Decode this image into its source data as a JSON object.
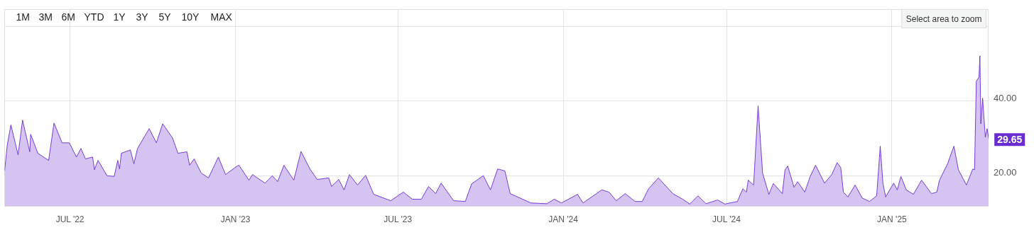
{
  "chart_data": {
    "type": "area",
    "x": [
      "2022-04-19",
      "2022-04-22",
      "2022-04-26",
      "2022-05-04",
      "2022-05-09",
      "2022-05-17",
      "2022-05-18",
      "2022-05-26",
      "2022-06-07",
      "2022-06-13",
      "2022-06-22",
      "2022-06-30",
      "2022-07-08",
      "2022-07-13",
      "2022-07-18",
      "2022-07-26",
      "2022-07-28",
      "2022-08-01",
      "2022-08-11",
      "2022-08-19",
      "2022-08-23",
      "2022-08-25",
      "2022-08-27",
      "2022-09-06",
      "2022-09-10",
      "2022-09-14",
      "2022-09-27",
      "2022-10-05",
      "2022-10-12",
      "2022-10-23",
      "2022-10-29",
      "2022-11-08",
      "2022-11-11",
      "2022-11-16",
      "2022-11-24",
      "2022-12-02",
      "2022-12-13",
      "2022-12-21",
      "2023-01-03",
      "2023-01-05",
      "2023-01-16",
      "2023-01-20",
      "2023-02-03",
      "2023-02-11",
      "2023-02-17",
      "2023-02-24",
      "2023-03-07",
      "2023-03-15",
      "2023-03-25",
      "2023-04-02",
      "2023-04-15",
      "2023-04-18",
      "2023-04-26",
      "2023-05-02",
      "2023-05-08",
      "2023-05-17",
      "2023-05-26",
      "2023-06-04",
      "2023-06-23",
      "2023-07-07",
      "2023-07-17",
      "2023-07-27",
      "2023-08-04",
      "2023-08-12",
      "2023-08-18",
      "2023-09-01",
      "2023-09-14",
      "2023-09-21",
      "2023-10-04",
      "2023-10-12",
      "2023-10-20",
      "2023-10-28",
      "2023-11-03",
      "2023-11-26",
      "2023-12-14",
      "2023-12-22",
      "2023-12-30",
      "2024-01-17",
      "2024-01-23",
      "2024-02-13",
      "2024-02-21",
      "2024-02-29",
      "2024-03-10",
      "2024-03-21",
      "2024-03-29",
      "2024-04-05",
      "2024-04-16",
      "2024-05-02",
      "2024-05-13",
      "2024-05-21",
      "2024-05-30",
      "2024-06-08",
      "2024-06-21",
      "2024-06-29",
      "2024-07-13",
      "2024-07-19",
      "2024-07-23",
      "2024-07-25",
      "2024-07-31",
      "2024-08-05",
      "2024-08-08",
      "2024-08-10",
      "2024-08-17",
      "2024-08-22",
      "2024-09-01",
      "2024-09-04",
      "2024-09-07",
      "2024-09-14",
      "2024-09-18",
      "2024-09-26",
      "2024-10-02",
      "2024-10-08",
      "2024-10-18",
      "2024-10-26",
      "2024-11-01",
      "2024-11-05",
      "2024-11-08",
      "2024-11-13",
      "2024-11-21",
      "2024-11-29",
      "2024-12-07",
      "2024-12-15",
      "2024-12-19",
      "2024-12-22",
      "2024-12-25",
      "2025-01-03",
      "2025-01-07",
      "2025-01-11",
      "2025-01-17",
      "2025-01-25",
      "2025-02-03",
      "2025-02-14",
      "2025-02-20",
      "2025-02-23",
      "2025-03-04",
      "2025-03-11",
      "2025-03-16",
      "2025-03-25",
      "2025-04-01",
      "2025-04-03",
      "2025-04-05",
      "2025-04-08",
      "2025-04-09",
      "2025-04-10",
      "2025-04-12",
      "2025-04-15",
      "2025-04-17",
      "2025-04-19"
    ],
    "series": [
      {
        "color": "#6a2bd0",
        "values": [
          21.3,
          28.3,
          33.6,
          25.6,
          34.9,
          26.4,
          31.1,
          26.0,
          24.1,
          34.1,
          28.8,
          28.8,
          25.0,
          27.3,
          24.5,
          25.0,
          21.6,
          24.1,
          20.0,
          19.8,
          24.1,
          21.8,
          26.0,
          26.9,
          23.2,
          27.3,
          32.6,
          28.8,
          33.9,
          30.1,
          26.0,
          26.4,
          22.8,
          24.5,
          20.7,
          19.4,
          25.0,
          20.3,
          22.6,
          22.8,
          18.8,
          20.3,
          18.0,
          20.0,
          18.4,
          22.8,
          18.8,
          26.5,
          21.8,
          19.0,
          19.4,
          17.1,
          19.0,
          16.2,
          20.3,
          17.5,
          20.1,
          15.0,
          13.3,
          15.6,
          13.7,
          13.7,
          17.1,
          15.2,
          18.0,
          13.3,
          13.1,
          17.8,
          20.0,
          16.2,
          21.8,
          21.3,
          15.2,
          12.7,
          12.5,
          13.7,
          12.7,
          15.0,
          12.7,
          16.2,
          15.6,
          13.3,
          15.2,
          13.1,
          13.1,
          16.5,
          19.4,
          15.2,
          13.7,
          12.4,
          14.6,
          12.5,
          13.5,
          12.4,
          13.1,
          16.5,
          15.6,
          18.8,
          17.5,
          38.7,
          27.9,
          20.7,
          15.0,
          17.9,
          15.2,
          21.6,
          22.6,
          16.9,
          18.4,
          15.6,
          19.8,
          22.8,
          18.0,
          20.3,
          23.5,
          22.2,
          15.6,
          14.3,
          17.5,
          14.0,
          13.1,
          14.6,
          27.9,
          18.0,
          14.3,
          18.0,
          16.2,
          19.8,
          16.2,
          15.0,
          18.8,
          15.2,
          15.6,
          18.8,
          23.2,
          27.9,
          21.6,
          17.5,
          21.8,
          21.6,
          45.3,
          46.4,
          52.1,
          33.9,
          40.8,
          30.3,
          32.6,
          29.65
        ]
      }
    ],
    "xlim": [
      "2022-04-19",
      "2025-04-19"
    ],
    "xticks": [
      {
        "value": "2022-07-01",
        "label": "JUL '22"
      },
      {
        "value": "2023-01-01",
        "label": "JAN '23"
      },
      {
        "value": "2023-07-01",
        "label": "JUL '23"
      },
      {
        "value": "2024-01-01",
        "label": "JAN '24"
      },
      {
        "value": "2024-07-01",
        "label": "JUL '24"
      },
      {
        "value": "2025-01-01",
        "label": "JAN '25"
      }
    ],
    "ylim": [
      11.8,
      64.5
    ],
    "yticks": [
      {
        "value": 20,
        "label": "20.00"
      },
      {
        "value": 40,
        "label": "40.00"
      },
      {
        "value": 60,
        "label": null
      }
    ],
    "grid": true,
    "annotations": [
      "1M",
      "3M",
      "6M",
      "YTD",
      "1Y",
      "3Y",
      "5Y",
      "10Y",
      "MAX",
      "Select area to zoom",
      "29.65"
    ]
  }
}
